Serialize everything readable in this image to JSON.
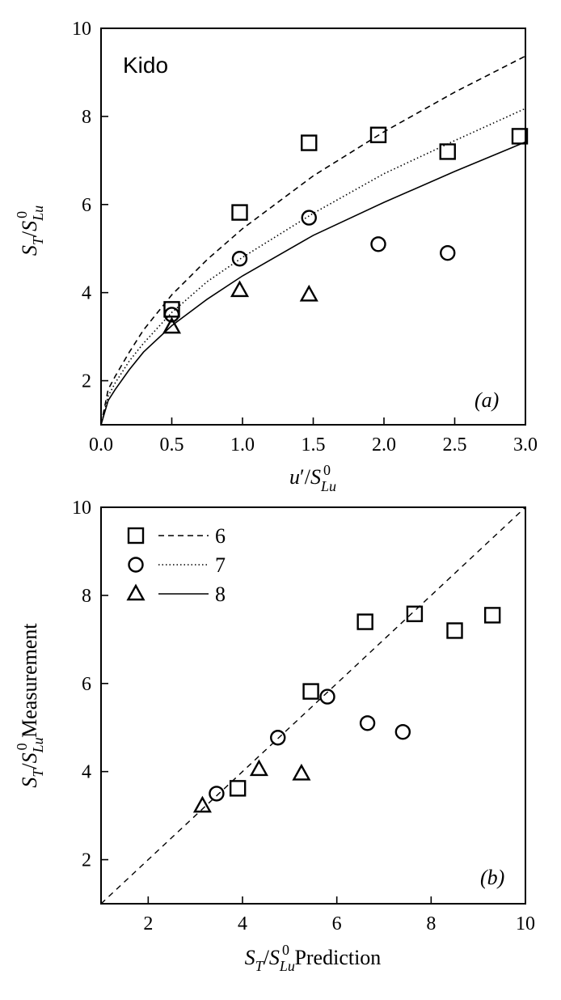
{
  "chart_data": [
    {
      "type": "scatter",
      "panel_label": "(a)",
      "annotation": "Kido",
      "xlabel": "u′/S⁰_Lu",
      "ylabel": "S_T/S⁰_Lu",
      "xlim": [
        0.0,
        3.0
      ],
      "ylim": [
        1.0,
        10.0
      ],
      "xticks": [
        "0.0",
        "0.5",
        "1.0",
        "1.5",
        "2.0",
        "2.5",
        "3.0"
      ],
      "yticks": [
        "2",
        "4",
        "6",
        "8",
        "10"
      ],
      "scatter_series": [
        {
          "marker": "square",
          "points": [
            [
              0.5,
              3.62
            ],
            [
              0.98,
              5.82
            ],
            [
              1.47,
              7.4
            ],
            [
              1.96,
              7.58
            ],
            [
              2.45,
              7.2
            ],
            [
              2.96,
              7.55
            ]
          ]
        },
        {
          "marker": "circle",
          "points": [
            [
              0.5,
              3.5
            ],
            [
              0.98,
              4.77
            ],
            [
              1.47,
              5.7
            ],
            [
              1.96,
              5.1
            ],
            [
              2.45,
              4.9
            ]
          ]
        },
        {
          "marker": "triangle",
          "points": [
            [
              0.5,
              3.22
            ],
            [
              0.98,
              4.05
            ],
            [
              1.47,
              3.95
            ]
          ]
        }
      ],
      "line_series": [
        {
          "style": "dashed",
          "points": [
            [
              0.0,
              1.0
            ],
            [
              0.05,
              1.8
            ],
            [
              0.1,
              2.1
            ],
            [
              0.2,
              2.65
            ],
            [
              0.3,
              3.15
            ],
            [
              0.5,
              3.95
            ],
            [
              0.75,
              4.75
            ],
            [
              1.0,
              5.45
            ],
            [
              1.5,
              6.65
            ],
            [
              2.0,
              7.65
            ],
            [
              2.5,
              8.55
            ],
            [
              3.0,
              9.37
            ]
          ]
        },
        {
          "style": "dotted",
          "points": [
            [
              0.0,
              1.0
            ],
            [
              0.05,
              1.65
            ],
            [
              0.1,
              1.95
            ],
            [
              0.2,
              2.45
            ],
            [
              0.3,
              2.85
            ],
            [
              0.5,
              3.55
            ],
            [
              0.75,
              4.25
            ],
            [
              1.0,
              4.8
            ],
            [
              1.5,
              5.8
            ],
            [
              2.0,
              6.7
            ],
            [
              2.5,
              7.45
            ],
            [
              3.0,
              8.18
            ]
          ]
        },
        {
          "style": "solid",
          "points": [
            [
              0.0,
              1.0
            ],
            [
              0.05,
              1.55
            ],
            [
              0.1,
              1.8
            ],
            [
              0.2,
              2.25
            ],
            [
              0.3,
              2.65
            ],
            [
              0.5,
              3.25
            ],
            [
              0.75,
              3.85
            ],
            [
              1.0,
              4.38
            ],
            [
              1.5,
              5.3
            ],
            [
              2.0,
              6.05
            ],
            [
              2.5,
              6.75
            ],
            [
              3.0,
              7.42
            ]
          ]
        }
      ]
    },
    {
      "type": "scatter",
      "panel_label": "(b)",
      "xlabel": "S_T/S⁰_Lu Prediction",
      "ylabel": "S_T/S⁰_Lu Measurement",
      "xlim": [
        1.0,
        10.0
      ],
      "ylim": [
        1.0,
        10.0
      ],
      "xticks": [
        "2",
        "4",
        "6",
        "8",
        "10"
      ],
      "yticks": [
        "2",
        "4",
        "6",
        "8",
        "10"
      ],
      "legend": [
        {
          "marker": "square",
          "line": "dashed",
          "label": "6"
        },
        {
          "marker": "circle",
          "line": "dotted",
          "label": "7"
        },
        {
          "marker": "triangle",
          "line": "solid",
          "label": "8"
        }
      ],
      "legend_position": "top-left",
      "reference_line": "y = x (dashed)",
      "scatter_series": [
        {
          "marker": "square",
          "points": [
            [
              3.9,
              3.62
            ],
            [
              5.45,
              5.82
            ],
            [
              6.6,
              7.4
            ],
            [
              7.65,
              7.58
            ],
            [
              8.5,
              7.2
            ],
            [
              9.3,
              7.55
            ]
          ]
        },
        {
          "marker": "circle",
          "points": [
            [
              3.45,
              3.5
            ],
            [
              4.75,
              4.77
            ],
            [
              5.8,
              5.7
            ],
            [
              6.65,
              5.1
            ],
            [
              7.4,
              4.9
            ]
          ]
        },
        {
          "marker": "triangle",
          "points": [
            [
              3.15,
              3.22
            ],
            [
              4.35,
              4.05
            ],
            [
              5.25,
              3.95
            ]
          ]
        }
      ]
    }
  ]
}
